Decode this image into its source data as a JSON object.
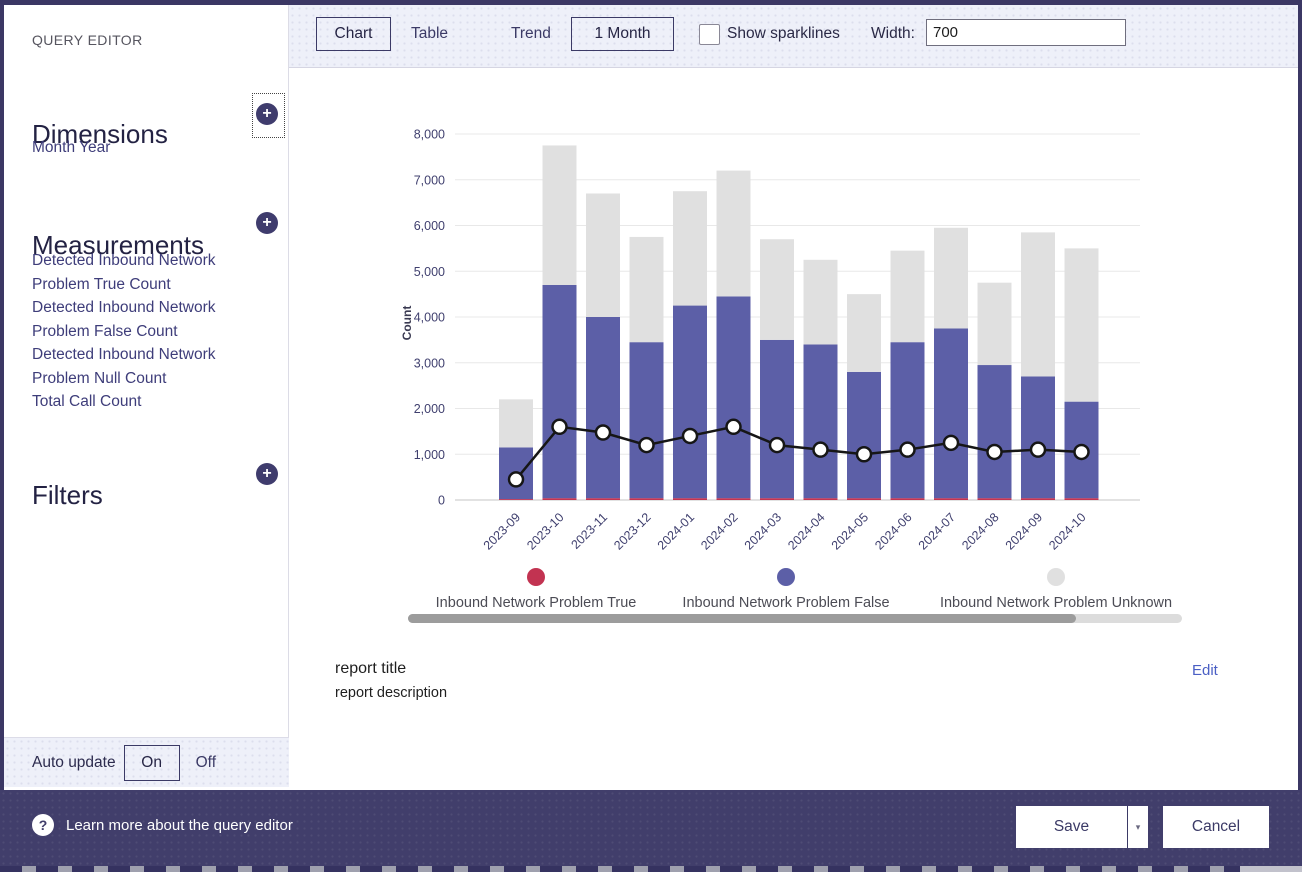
{
  "sidebar": {
    "title": "QUERY EDITOR",
    "dimensions": {
      "heading": "Dimensions",
      "items": [
        "Month Year"
      ]
    },
    "measurements": {
      "heading": "Measurements",
      "items": [
        "Detected Inbound Network Problem True Count",
        "Detected Inbound Network Problem False Count",
        "Detected Inbound Network Problem Null Count",
        "Total Call Count"
      ]
    },
    "filters": {
      "heading": "Filters"
    },
    "auto_update": {
      "label": "Auto update",
      "on": "On",
      "off": "Off",
      "selected": "On"
    }
  },
  "toolbar": {
    "chart": "Chart",
    "table": "Table",
    "trend": "Trend",
    "period": "1 Month",
    "sparklines_label": "Show sparklines",
    "sparklines_checked": false,
    "width_label": "Width:",
    "width_value": "700"
  },
  "report": {
    "title": "report title",
    "description": "report description",
    "edit": "Edit"
  },
  "footer": {
    "help": "Learn more about the query editor",
    "save": "Save",
    "cancel": "Cancel"
  },
  "colors": {
    "accent_dark": "#3b3764",
    "series_true": "#c23351",
    "series_false": "#5c5fa7",
    "series_unknown": "#e0e0e0",
    "trend_line": "#161616"
  },
  "chart_data": {
    "type": "bar",
    "subtype": "stacked-bar-with-line",
    "title": "",
    "xlabel": "",
    "ylabel": "Count",
    "ylim": [
      0,
      8000
    ],
    "y_tick_step": 1000,
    "grid": true,
    "legend_position": "bottom",
    "categories": [
      "2023-09",
      "2023-10",
      "2023-11",
      "2023-12",
      "2024-01",
      "2024-02",
      "2024-03",
      "2024-04",
      "2024-05",
      "2024-06",
      "2024-07",
      "2024-08",
      "2024-09",
      "2024-10"
    ],
    "series": [
      {
        "name": "Inbound Network Problem True",
        "color": "#c23351",
        "values": [
          20,
          40,
          40,
          40,
          40,
          40,
          40,
          40,
          40,
          40,
          40,
          40,
          40,
          40
        ]
      },
      {
        "name": "Inbound Network Problem False",
        "color": "#5c5fa7",
        "values": [
          1130,
          4660,
          3960,
          3410,
          4210,
          4410,
          3460,
          3360,
          2760,
          3410,
          3710,
          2910,
          2660,
          2110
        ]
      },
      {
        "name": "Inbound Network Problem Unknown",
        "color": "#e0e0e0",
        "values": [
          1050,
          3050,
          2700,
          2300,
          2500,
          2750,
          2200,
          1850,
          1700,
          2000,
          2200,
          1800,
          3150,
          3350
        ]
      }
    ],
    "line": {
      "color": "#161616",
      "marker_fill": "#ffffff",
      "values": [
        450,
        1600,
        1475,
        1200,
        1400,
        1600,
        1200,
        1100,
        1000,
        1100,
        1250,
        1050,
        1100,
        1050
      ]
    }
  }
}
